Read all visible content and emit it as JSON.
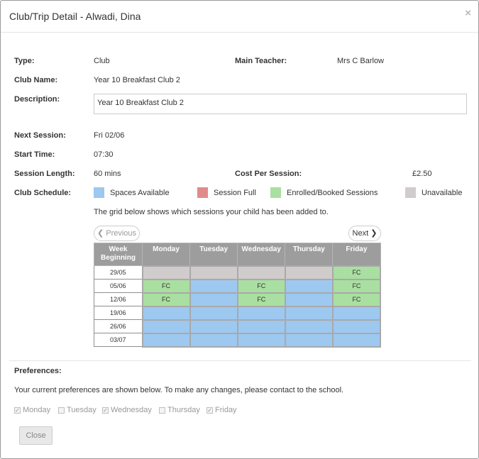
{
  "title": "Club/Trip Detail - Alwadi, Dina",
  "close_symbol": "×",
  "fields": {
    "type_label": "Type:",
    "type_value": "Club",
    "teacher_label": "Main Teacher:",
    "teacher_value": "Mrs C Barlow",
    "club_name_label": "Club Name:",
    "club_name_value": "Year 10 Breakfast Club 2",
    "description_label": "Description:",
    "description_value": "Year 10 Breakfast Club 2",
    "next_session_label": "Next Session:",
    "next_session_value": "Fri 02/06",
    "start_time_label": "Start Time:",
    "start_time_value": "07:30",
    "session_length_label": "Session Length:",
    "session_length_value": "60 mins",
    "cost_label": "Cost Per Session:",
    "cost_value": "£2.50",
    "schedule_label": "Club Schedule:"
  },
  "legend": [
    {
      "label": "Spaces Available",
      "color": "#9dc8f0"
    },
    {
      "label": "Session Full",
      "color": "#e08b8b"
    },
    {
      "label": "Enrolled/Booked Sessions",
      "color": "#a9dfa0"
    },
    {
      "label": "Unavailable",
      "color": "#d0cccc"
    }
  ],
  "grid_note": "The grid below shows which sessions your child has been added to.",
  "nav": {
    "previous": "Previous",
    "next": "Next"
  },
  "grid": {
    "headers": [
      "Week Beginning",
      "Monday",
      "Tuesday",
      "Wednesday",
      "Thursday",
      "Friday"
    ],
    "rows": [
      {
        "week": "29/05",
        "cells": [
          {
            "status": "unavailable",
            "text": ""
          },
          {
            "status": "unavailable",
            "text": ""
          },
          {
            "status": "unavailable",
            "text": ""
          },
          {
            "status": "unavailable",
            "text": ""
          },
          {
            "status": "enrolled",
            "text": "FC"
          }
        ]
      },
      {
        "week": "05/06",
        "cells": [
          {
            "status": "enrolled",
            "text": "FC"
          },
          {
            "status": "available",
            "text": ""
          },
          {
            "status": "enrolled",
            "text": "FC"
          },
          {
            "status": "available",
            "text": ""
          },
          {
            "status": "enrolled",
            "text": "FC"
          }
        ]
      },
      {
        "week": "12/06",
        "cells": [
          {
            "status": "enrolled",
            "text": "FC"
          },
          {
            "status": "available",
            "text": ""
          },
          {
            "status": "enrolled",
            "text": "FC"
          },
          {
            "status": "available",
            "text": ""
          },
          {
            "status": "enrolled",
            "text": "FC"
          }
        ]
      },
      {
        "week": "19/06",
        "cells": [
          {
            "status": "available",
            "text": ""
          },
          {
            "status": "available",
            "text": ""
          },
          {
            "status": "available",
            "text": ""
          },
          {
            "status": "available",
            "text": ""
          },
          {
            "status": "available",
            "text": ""
          }
        ]
      },
      {
        "week": "26/06",
        "cells": [
          {
            "status": "available",
            "text": ""
          },
          {
            "status": "available",
            "text": ""
          },
          {
            "status": "available",
            "text": ""
          },
          {
            "status": "available",
            "text": ""
          },
          {
            "status": "available",
            "text": ""
          }
        ]
      },
      {
        "week": "03/07",
        "cells": [
          {
            "status": "available",
            "text": ""
          },
          {
            "status": "available",
            "text": ""
          },
          {
            "status": "available",
            "text": ""
          },
          {
            "status": "available",
            "text": ""
          },
          {
            "status": "available",
            "text": ""
          }
        ]
      }
    ]
  },
  "preferences": {
    "heading": "Preferences:",
    "note": "Your current preferences are shown below. To make any changes, please contact to the school.",
    "days": [
      {
        "label": "Monday",
        "checked": true
      },
      {
        "label": "Tuesday",
        "checked": false
      },
      {
        "label": "Wednesday",
        "checked": true
      },
      {
        "label": "Thursday",
        "checked": false
      },
      {
        "label": "Friday",
        "checked": true
      }
    ]
  },
  "close_button": "Close"
}
